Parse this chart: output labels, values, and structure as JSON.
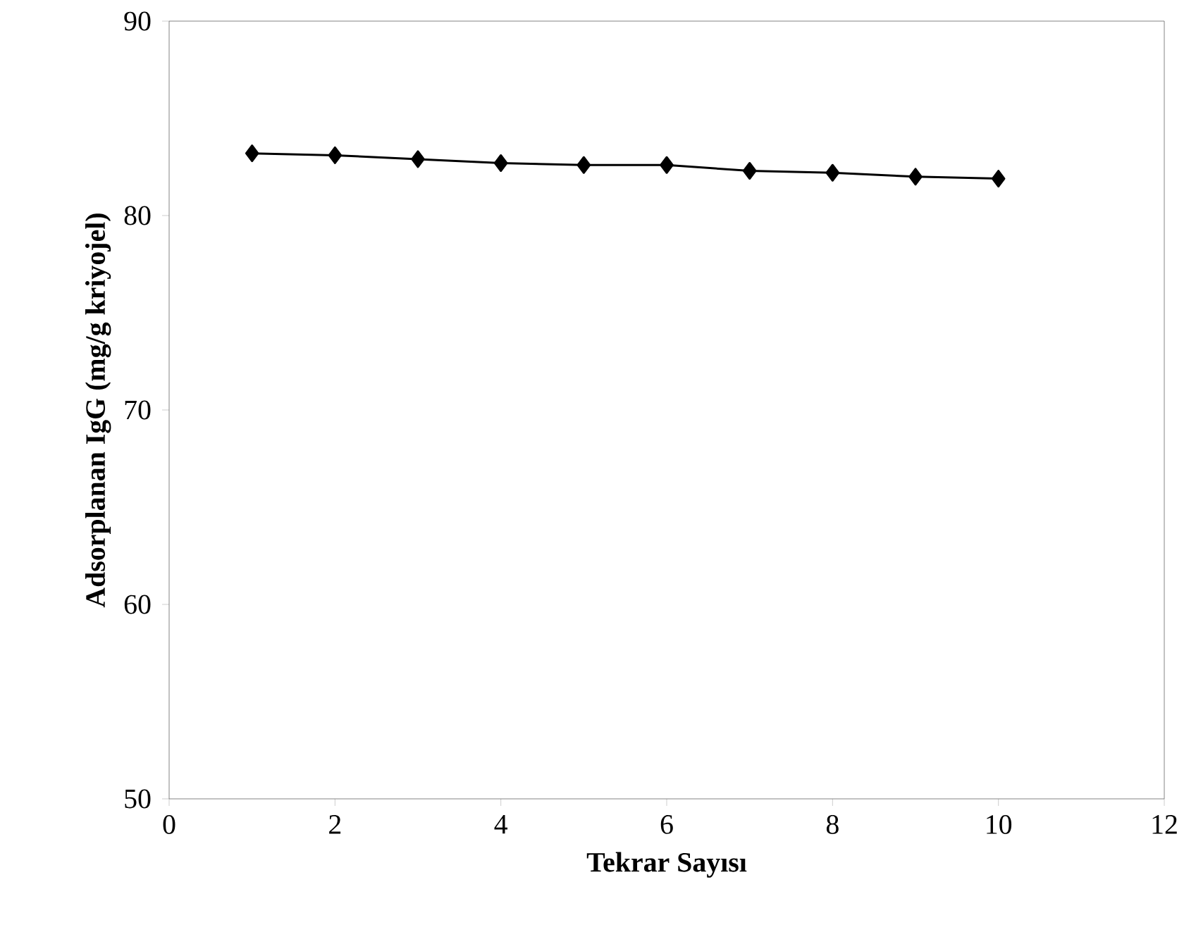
{
  "chart_data": {
    "type": "line",
    "xlabel": "Tekrar Sayısı",
    "ylabel": "Adsorplanan IgG (mg/g kriyojel)",
    "x": [
      1,
      2,
      3,
      4,
      5,
      6,
      7,
      8,
      9,
      10
    ],
    "series": [
      {
        "color": "#000000",
        "values": [
          83.2,
          83.1,
          82.9,
          82.7,
          82.6,
          82.6,
          82.3,
          82.2,
          82.0,
          81.9
        ]
      }
    ],
    "xlim": [
      0,
      12
    ],
    "ylim": [
      50,
      90
    ],
    "xticks": [
      0,
      2,
      4,
      6,
      8,
      10,
      12
    ],
    "yticks": [
      50,
      60,
      70,
      80,
      90
    ],
    "marker": "diamond",
    "line_style": "solid"
  }
}
